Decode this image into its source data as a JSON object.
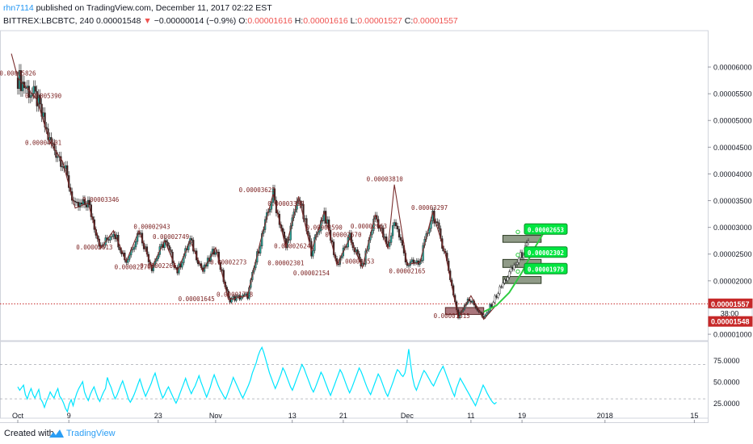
{
  "header": {
    "author": "rhn7114",
    "published": " published on TradingView.com, December 11, 2017 02:22 EST",
    "symbol": "BITTREX:LBCBTC, 240",
    "last": "0.00001548",
    "change": "−0.00000014 (−0.9%)",
    "o_label": "O:",
    "o_value": "0.00001616",
    "h_label": "H:",
    "h_value": "0.00001616",
    "l_label": "L:",
    "l_value": "0.00001527",
    "c_label": "C:",
    "c_value": "0.00001557"
  },
  "footer": {
    "created": "Created with",
    "brand": "TradingView"
  },
  "chart_data": [
    {
      "type": "candlestick",
      "series_name": "BITTREX:LBCBTC, 240",
      "ylim": [
        8.8e-06,
        6.65e-05
      ],
      "price_ticks": [
        "0.00006000",
        "0.00005500",
        "0.00005000",
        "0.00004500",
        "0.00004000",
        "0.00003500",
        "0.00003000",
        "0.00002500",
        "0.00002000",
        "0.00001500",
        "0.00001000"
      ],
      "price_tick_values": [
        6e-05,
        5.5e-05,
        5e-05,
        4.5e-05,
        4e-05,
        3.5e-05,
        3e-05,
        2.5e-05,
        2e-05,
        1.5e-05,
        1e-05
      ],
      "time_labels": [
        {
          "label": "Oct",
          "day": 0
        },
        {
          "label": "9",
          "day": 8
        },
        {
          "label": "23",
          "day": 22
        },
        {
          "label": "Nov",
          "day": 31
        },
        {
          "label": "13",
          "day": 43
        },
        {
          "label": "21",
          "day": 51
        },
        {
          "label": "Dec",
          "day": 61
        },
        {
          "label": "11",
          "day": 71
        },
        {
          "label": "19",
          "day": 79
        },
        {
          "label": "2018",
          "day": 92
        },
        {
          "label": "15",
          "day": 106
        }
      ],
      "trend_path": [
        [
          -1,
          6.25e-05
        ],
        [
          0,
          5.8e-05
        ],
        [
          3,
          5.39e-05
        ],
        [
          5,
          4.6e-05
        ],
        [
          7,
          4.24e-05
        ],
        [
          9,
          3.36e-05
        ],
        [
          11,
          3.46e-05
        ],
        [
          13,
          2.61e-05
        ],
        [
          15,
          2.94e-05
        ],
        [
          17,
          2.36e-05
        ],
        [
          19,
          2.94e-05
        ],
        [
          21,
          2.25e-05
        ],
        [
          23,
          2.75e-05
        ],
        [
          25,
          2.18e-05
        ],
        [
          27,
          2.75e-05
        ],
        [
          29,
          2.18e-05
        ],
        [
          31,
          2.62e-05
        ],
        [
          33,
          1.65e-05
        ],
        [
          36,
          1.72e-05
        ],
        [
          38,
          2.73e-05
        ],
        [
          40,
          3.62e-05
        ],
        [
          42,
          2.62e-05
        ],
        [
          44,
          3.58e-05
        ],
        [
          46,
          2.55e-05
        ],
        [
          48,
          3.29e-05
        ],
        [
          50,
          2.3e-05
        ],
        [
          52,
          2.8e-05
        ],
        [
          54,
          2.25e-05
        ],
        [
          56,
          3.23e-05
        ],
        [
          58,
          2.6e-05
        ],
        [
          59,
          3.8e-05
        ],
        [
          61,
          2.31e-05
        ],
        [
          63,
          2.34e-05
        ],
        [
          65,
          3.28e-05
        ],
        [
          67,
          2.5e-05
        ],
        [
          69,
          1.31e-05
        ],
        [
          71,
          1.72e-05
        ],
        [
          73,
          1.28e-05
        ],
        [
          75,
          1.55e-05
        ]
      ],
      "candles_path": [
        [
          0,
          5.8e-05
        ],
        [
          3,
          5.39e-05
        ],
        [
          5,
          4.6e-05
        ],
        [
          7,
          4.24e-05
        ],
        [
          9,
          3.36e-05
        ],
        [
          11,
          3.46e-05
        ],
        [
          13,
          2.61e-05
        ],
        [
          15,
          2.94e-05
        ],
        [
          17,
          2.36e-05
        ],
        [
          19,
          2.94e-05
        ],
        [
          21,
          2.25e-05
        ],
        [
          23,
          2.75e-05
        ],
        [
          25,
          2.18e-05
        ],
        [
          27,
          2.75e-05
        ],
        [
          29,
          2.18e-05
        ],
        [
          31,
          2.62e-05
        ],
        [
          33,
          1.65e-05
        ],
        [
          36,
          1.72e-05
        ],
        [
          38,
          2.73e-05
        ],
        [
          40,
          3.62e-05
        ],
        [
          42,
          2.62e-05
        ],
        [
          44,
          3.58e-05
        ],
        [
          46,
          2.55e-05
        ],
        [
          48,
          3.29e-05
        ],
        [
          50,
          2.3e-05
        ],
        [
          52,
          2.8e-05
        ],
        [
          54,
          2.25e-05
        ],
        [
          56,
          3.23e-05
        ],
        [
          58,
          2.6e-05
        ],
        [
          59,
          3.15e-05
        ],
        [
          61,
          2.31e-05
        ],
        [
          63,
          2.34e-05
        ],
        [
          65,
          3.28e-05
        ],
        [
          67,
          2.5e-05
        ],
        [
          69,
          1.31e-05
        ],
        [
          70.5,
          1.68e-05
        ],
        [
          72,
          1.48e-05
        ],
        [
          73,
          1.28e-05
        ],
        [
          74.5,
          1.62e-05
        ],
        [
          76,
          1.95e-05
        ],
        [
          78,
          2.32e-05
        ],
        [
          80,
          2.68e-05
        ]
      ],
      "swing_labels": [
        {
          "text": "0.00005826",
          "day": 0,
          "price": 5.84e-05
        },
        {
          "text": "0.00005390",
          "day": 4,
          "price": 5.42e-05
        },
        {
          "text": "0.00004601",
          "day": 4,
          "price": 4.54e-05
        },
        {
          "text": "0.00003346",
          "day": 13,
          "price": 3.48e-05
        },
        {
          "text": "0.00002613",
          "day": 12,
          "price": 2.59e-05
        },
        {
          "text": "0.00002943",
          "day": 21,
          "price": 2.97e-05
        },
        {
          "text": "0.00002749",
          "day": 24,
          "price": 2.78e-05
        },
        {
          "text": "0.00002276",
          "day": 18,
          "price": 2.22e-05
        },
        {
          "text": "0.00002266",
          "day": 22,
          "price": 2.24e-05
        },
        {
          "text": "0.00002273",
          "day": 33,
          "price": 2.31e-05
        },
        {
          "text": "0.00001645",
          "day": 28,
          "price": 1.62e-05
        },
        {
          "text": "0.00001718",
          "day": 34,
          "price": 1.7e-05
        },
        {
          "text": "0.00003623",
          "day": 37.5,
          "price": 3.66e-05
        },
        {
          "text": "0.00003358",
          "day": 42,
          "price": 3.4e-05
        },
        {
          "text": "0.00002590",
          "day": 48,
          "price": 2.96e-05
        },
        {
          "text": "0.00002624",
          "day": 43,
          "price": 2.61e-05
        },
        {
          "text": "0.00002301",
          "day": 42,
          "price": 2.29e-05
        },
        {
          "text": "0.00002154",
          "day": 46,
          "price": 2.1e-05
        },
        {
          "text": "0.00002670",
          "day": 51,
          "price": 2.82e-05
        },
        {
          "text": "0.00002353",
          "day": 53,
          "price": 2.32e-05
        },
        {
          "text": "0.00002963",
          "day": 55,
          "price": 2.98e-05
        },
        {
          "text": "0.00003810",
          "day": 57.5,
          "price": 3.86e-05
        },
        {
          "text": "0.00002165",
          "day": 61,
          "price": 2.14e-05
        },
        {
          "text": "0.00003297",
          "day": 64.5,
          "price": 3.33e-05
        },
        {
          "text": "0.00001315",
          "day": 68,
          "price": 1.3e-05
        }
      ],
      "target_labels": [
        {
          "text": "0.00002653",
          "price": 2.96e-05
        },
        {
          "text": "0.00002302",
          "price": 2.53e-05
        },
        {
          "text": "0.00001979",
          "price": 2.22e-05
        }
      ],
      "target_boxes": [
        {
          "d0": 76,
          "d1": 82,
          "p0": 2.72e-05,
          "p1": 2.85e-05
        },
        {
          "d0": 76,
          "d1": 82,
          "p0": 2.25e-05,
          "p1": 2.4e-05
        },
        {
          "d0": 76,
          "d1": 82,
          "p0": 1.95e-05,
          "p1": 2.08e-05
        }
      ],
      "support_box": {
        "d0": 67,
        "d1": 73,
        "p0": 1.37e-05,
        "p1": 1.5e-05
      },
      "projection_curve": [
        [
          73,
          1.42e-05
        ],
        [
          75,
          1.54e-05
        ],
        [
          77,
          1.78e-05
        ],
        [
          79,
          2.16e-05
        ],
        [
          81,
          2.62e-05
        ],
        [
          82.5,
          2.92e-05
        ]
      ],
      "last_price_line": 1.57e-05,
      "price_badges": [
        {
          "text": "0.00001557",
          "price": 1.57e-05
        },
        {
          "text": "38:00",
          "price": 1.39e-05
        },
        {
          "text": "0.00001548",
          "price": 1.24e-05
        }
      ]
    },
    {
      "type": "line",
      "series_name": "RSI",
      "ylim": [
        15,
        95
      ],
      "ticks": [
        "75.0000",
        "50.0000",
        "25.0000"
      ],
      "tick_values": [
        75,
        50,
        25
      ],
      "band": [
        30,
        70
      ],
      "values": [
        44,
        40,
        43,
        46,
        35,
        30,
        37,
        42,
        35,
        31,
        36,
        41,
        30,
        26,
        20,
        27,
        32,
        38,
        34,
        31,
        37,
        42,
        33,
        30,
        25,
        19,
        15,
        24,
        29,
        22,
        30,
        37,
        42,
        46,
        50,
        38,
        32,
        28,
        35,
        40,
        44,
        37,
        31,
        27,
        33,
        38,
        42,
        55,
        48,
        43,
        36,
        30,
        34,
        40,
        46,
        51,
        44,
        37,
        30,
        26,
        30,
        35,
        41,
        47,
        53,
        46,
        39,
        33,
        38,
        43,
        48,
        55,
        60,
        52,
        44,
        37,
        31,
        35,
        40,
        44,
        39,
        34,
        29,
        25,
        30,
        36,
        42,
        48,
        54,
        47,
        41,
        36,
        41,
        45,
        51,
        57,
        50,
        44,
        38,
        32,
        38,
        44,
        52,
        58,
        52,
        46,
        41,
        37,
        33,
        30,
        36,
        42,
        48,
        55,
        50,
        45,
        40,
        35,
        31,
        36,
        41,
        46,
        52,
        60,
        66,
        72,
        80,
        86,
        90,
        84,
        76,
        68,
        60,
        54,
        48,
        42,
        47,
        53,
        59,
        66,
        62,
        56,
        50,
        44,
        40,
        46,
        52,
        58,
        64,
        70,
        66,
        60,
        54,
        48,
        42,
        38,
        43,
        49,
        55,
        61,
        57,
        51,
        45,
        39,
        34,
        40,
        46,
        52,
        58,
        64,
        60,
        54,
        48,
        42,
        37,
        42,
        48,
        54,
        60,
        66,
        62,
        56,
        50,
        44,
        39,
        35,
        41,
        47,
        53,
        59,
        55,
        49,
        43,
        37,
        33,
        39,
        45,
        51,
        58,
        64,
        62,
        58,
        56,
        60,
        72,
        88,
        70,
        55,
        45,
        40,
        46,
        52,
        58,
        63,
        60,
        56,
        52,
        48,
        45,
        50,
        55,
        60,
        64,
        68,
        62,
        56,
        50,
        44,
        38,
        33,
        42,
        48,
        54,
        50,
        46,
        42,
        38,
        34,
        30,
        26,
        22,
        28,
        34,
        40,
        46,
        42,
        37,
        33,
        29,
        26,
        24,
        26
      ]
    }
  ]
}
